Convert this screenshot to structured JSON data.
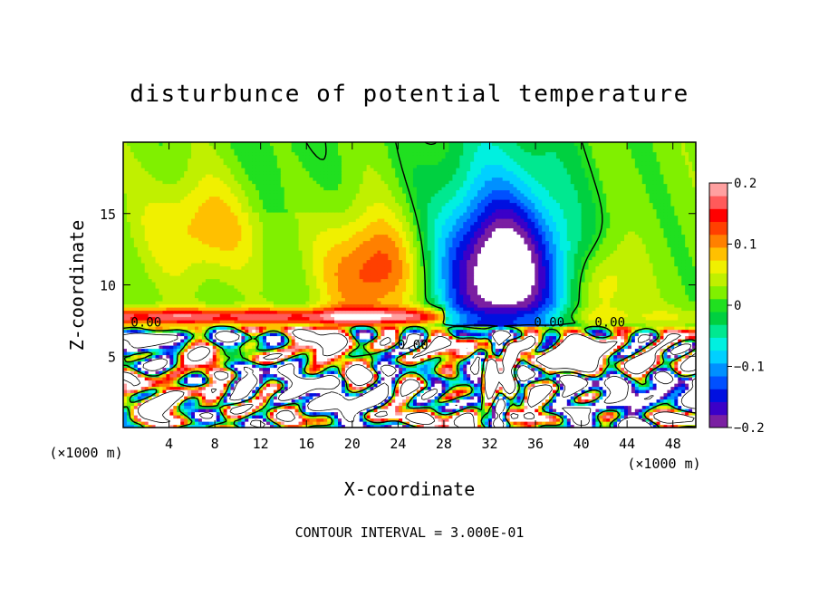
{
  "chart_data": {
    "type": "heatmap",
    "title": "disturbunce of potential temperature",
    "xlabel": "X-coordinate",
    "ylabel": "Z-coordinate",
    "x_unit": "(×1000 m)",
    "y_unit": "(×1000 m)",
    "footer": "CONTOUR INTERVAL = 3.000E-01",
    "xlim": [
      0,
      50
    ],
    "ylim": [
      0,
      20
    ],
    "x_ticks": [
      4,
      8,
      12,
      16,
      20,
      24,
      28,
      32,
      36,
      40,
      44,
      48
    ],
    "x_tick_labels": [
      "4",
      "8",
      "12",
      "16",
      "20",
      "24",
      "28",
      "32",
      "36",
      "40",
      "44",
      "48"
    ],
    "y_ticks": [
      5,
      10,
      15
    ],
    "y_tick_labels": [
      "5",
      "10",
      "15"
    ],
    "colorbar": {
      "range": [
        -0.2,
        0.2
      ],
      "ticks": [
        0.2,
        0.1,
        0,
        -0.1,
        -0.2
      ],
      "tick_labels": [
        "0.2",
        "0.1",
        "0",
        "−0.1",
        "−0.2"
      ],
      "colors": [
        "#7a1fa2",
        "#3b00c8",
        "#0010e0",
        "#0050ff",
        "#0090ff",
        "#00d0ff",
        "#00f0e0",
        "#00e890",
        "#00d040",
        "#20e020",
        "#80f000",
        "#c0f000",
        "#f0f000",
        "#ffc000",
        "#ff8000",
        "#ff4000",
        "#ff0000",
        "#ff5a5a",
        "#ffa0a0"
      ]
    },
    "contour_labels": [
      {
        "text": "0.00",
        "x": 2.0,
        "y": 7.4
      },
      {
        "text": "0.00",
        "x": 25.3,
        "y": 5.8
      },
      {
        "text": "0.00",
        "x": 37.2,
        "y": 7.4
      },
      {
        "text": "0.00",
        "x": 42.5,
        "y": 7.4
      }
    ],
    "features": [
      {
        "name": "cold-core",
        "x": 33,
        "y": 11,
        "sx": 5.5,
        "sy": 5.5,
        "value": -0.22
      },
      {
        "name": "warm-lobe-left",
        "x": 7,
        "y": 14,
        "sx": 5,
        "sy": 3.5,
        "value": 0.07
      },
      {
        "name": "warm-lobe-mid",
        "x": 22,
        "y": 11,
        "sx": 4.5,
        "sy": 4,
        "value": 0.12
      },
      {
        "name": "warm-right",
        "x": 42,
        "y": 10,
        "sx": 2.5,
        "sy": 3,
        "value": 0.07
      }
    ]
  }
}
